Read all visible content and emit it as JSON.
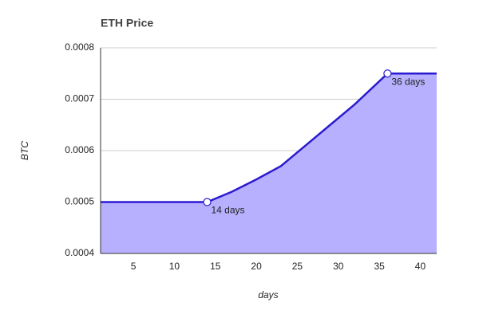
{
  "chart_data": {
    "type": "area",
    "title": "ETH Price",
    "x_label": "days",
    "y_label": "BTC",
    "x": [
      1,
      14,
      17,
      20,
      23,
      26,
      29,
      32,
      36,
      42
    ],
    "series": [
      {
        "name": "ETH Price",
        "color": "#2b1bd0",
        "fill": "#b7b0fe",
        "values": [
          0.0005,
          0.0005,
          0.00052,
          0.000544,
          0.00057,
          0.00061,
          0.00065,
          0.00069,
          0.00075,
          0.00075
        ]
      }
    ],
    "annotations": [
      {
        "x": 14,
        "text": "14 days"
      },
      {
        "x": 36,
        "text": "36 days"
      }
    ],
    "xlim": [
      1,
      42
    ],
    "xticks": [
      5,
      10,
      15,
      20,
      25,
      30,
      35,
      40
    ],
    "ylim": [
      0.0004,
      0.0008
    ],
    "yticks": [
      0.0004,
      0.0005,
      0.0006,
      0.0007,
      0.0008
    ],
    "grid": true
  }
}
